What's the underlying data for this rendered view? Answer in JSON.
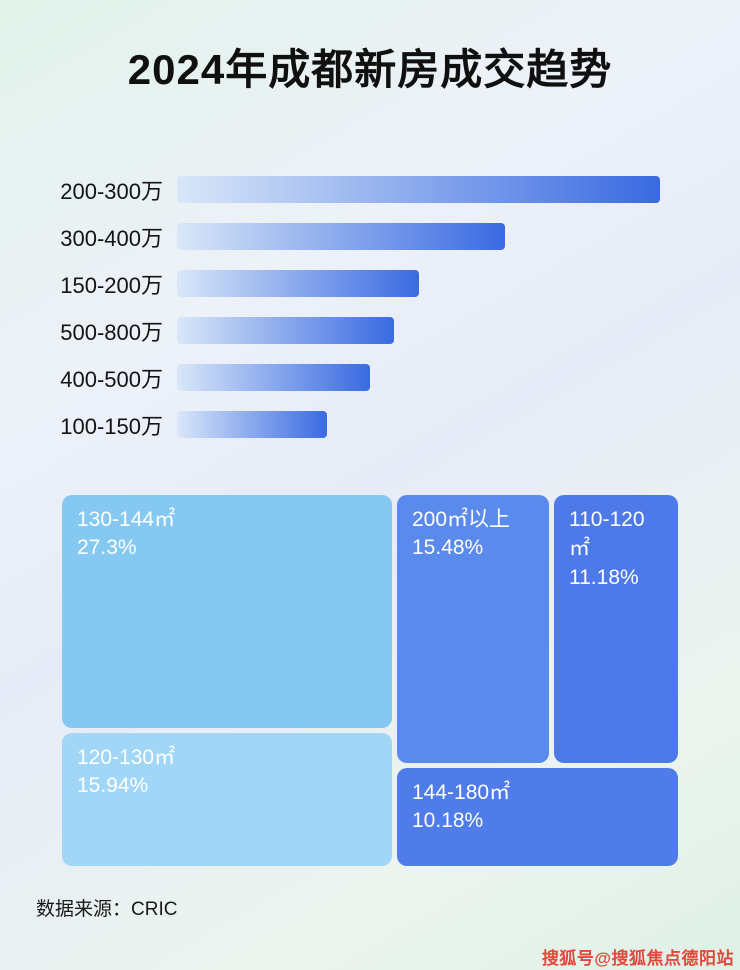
{
  "page": {
    "title": "2024年成都新房成交趋势",
    "source_note": "数据来源：CRIC",
    "watermark": "搜狐号@搜狐焦点德阳站"
  },
  "colors": {
    "bar_gradient_start": "#d9e7f8",
    "bar_gradient_end": "#3a6ae2",
    "block_130_144": "#85c9f3",
    "block_120_130": "#a2d6f7",
    "block_200_plus": "#5a8aec",
    "block_110_120": "#4d7ae8",
    "block_144_180": "#4f7ce8",
    "watermark_color": "#e2483b",
    "title_color": "#101010"
  },
  "chart_data": [
    {
      "type": "bar",
      "orientation": "horizontal",
      "categories": [
        "200-300万",
        "300-400万",
        "150-200万",
        "500-800万",
        "400-500万",
        "100-150万"
      ],
      "values": [
        100,
        68,
        50,
        45,
        40,
        31
      ],
      "value_note": "bar lengths as percent of longest bar; no numeric labels shown in image",
      "xlabel": "",
      "ylabel": "",
      "grid": false,
      "legend": false
    },
    {
      "type": "treemap",
      "items": [
        {
          "label": "130-144㎡",
          "value": 27.3,
          "display": "27.3%"
        },
        {
          "label": "120-130㎡",
          "value": 15.94,
          "display": "15.94%"
        },
        {
          "label": "200㎡以上",
          "value": 15.48,
          "display": "15.48%"
        },
        {
          "label": "110-120㎡",
          "value": 11.18,
          "display": "11.18%"
        },
        {
          "label": "144-180㎡",
          "value": 10.18,
          "display": "10.18%"
        }
      ]
    }
  ]
}
